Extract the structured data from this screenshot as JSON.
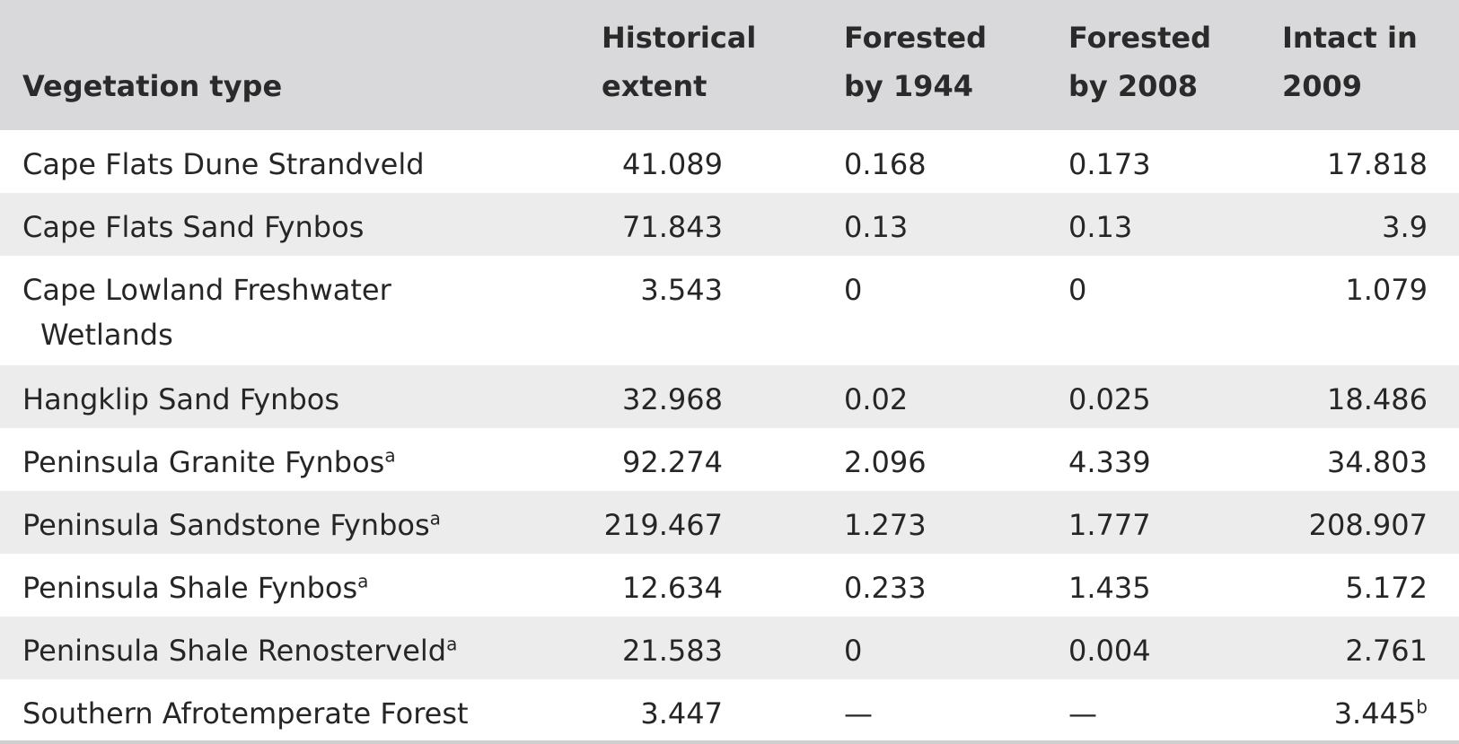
{
  "headers": {
    "vegetation_type": "Vegetation type",
    "historical_extent": [
      "Historical",
      "extent"
    ],
    "forested_1944": [
      "Forested",
      "by 1944"
    ],
    "forested_2008": [
      "Forested",
      "by 2008"
    ],
    "intact_2009": [
      "Intact in",
      "2009"
    ]
  },
  "rows": [
    {
      "name": "Cape Flats Dune Strandveld",
      "sup": "",
      "historical": "41.089",
      "f1944": "0.168",
      "f2008": "0.173",
      "intact": "17.818",
      "intact_sup": ""
    },
    {
      "name": "Cape Flats Sand Fynbos",
      "sup": "",
      "historical": "71.843",
      "f1944": "0.13",
      "f2008": "0.13",
      "intact": "3.9",
      "intact_sup": ""
    },
    {
      "name": "Cape Lowland Freshwater",
      "name_cont": "Wetlands",
      "sup": "",
      "historical": "3.543",
      "f1944": "0",
      "f2008": "0",
      "intact": "1.079",
      "intact_sup": ""
    },
    {
      "name": "Hangklip Sand Fynbos",
      "sup": "",
      "historical": "32.968",
      "f1944": "0.02",
      "f2008": "0.025",
      "intact": "18.486",
      "intact_sup": ""
    },
    {
      "name": "Peninsula Granite Fynbos",
      "sup": "a",
      "historical": "92.274",
      "f1944": "2.096",
      "f2008": "4.339",
      "intact": "34.803",
      "intact_sup": ""
    },
    {
      "name": "Peninsula Sandstone Fynbos",
      "sup": "a",
      "historical": "219.467",
      "f1944": "1.273",
      "f2008": "1.777",
      "intact": "208.907",
      "intact_sup": ""
    },
    {
      "name": "Peninsula Shale Fynbos",
      "sup": "a",
      "historical": "12.634",
      "f1944": "0.233",
      "f2008": "1.435",
      "intact": "5.172",
      "intact_sup": ""
    },
    {
      "name": "Peninsula Shale Renosterveld",
      "sup": "a",
      "historical": "21.583",
      "f1944": "0",
      "f2008": "0.004",
      "intact": "2.761",
      "intact_sup": ""
    },
    {
      "name": "Southern Afrotemperate Forest",
      "sup": "",
      "historical": "3.447",
      "f1944": "—",
      "f2008": "—",
      "intact": "3.445",
      "intact_sup": "b"
    }
  ]
}
